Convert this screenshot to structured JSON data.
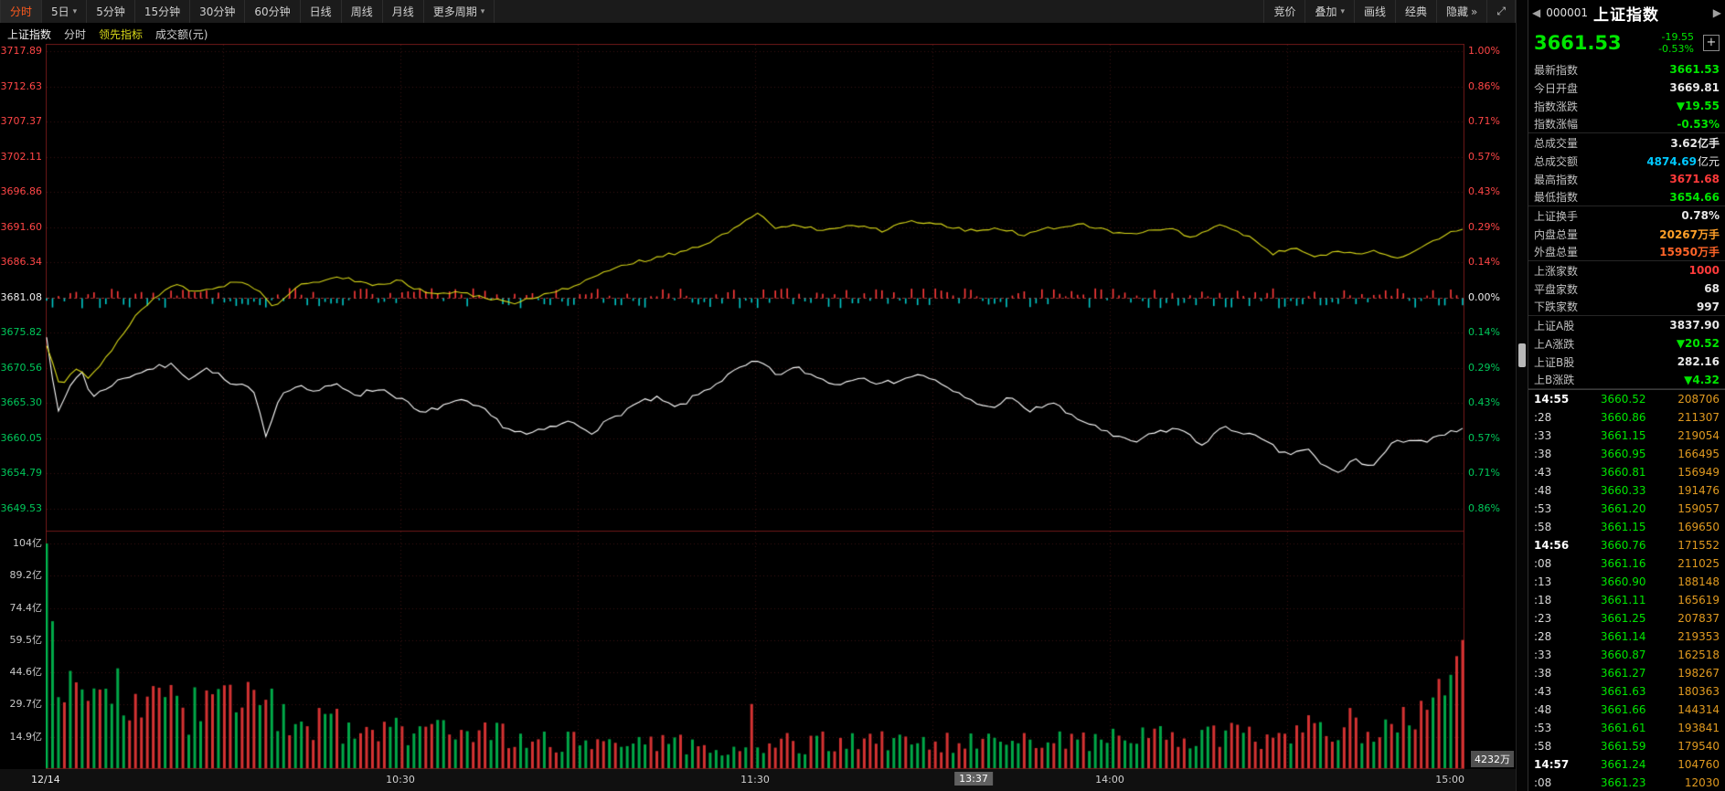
{
  "colors": {
    "up_red": "#ff3a3a",
    "down_green": "#00e600",
    "neutral_white": "#e8e8e8",
    "amount_cyan": "#00c8ff",
    "inner_orange": "#ffa028",
    "outer_orange_red": "#ff6428",
    "tick_volume_orange": "#e09a20",
    "leader_yellow": "#d8d818",
    "price_line_white": "#ffffff",
    "axis_red": "#ff4646",
    "axis_green": "#00c85a",
    "grid_dark_red": "#3a1010",
    "frame_red": "#6e1818",
    "mid_line_red": "#943030",
    "vol_up_red": "#d43232",
    "vol_down_green": "#00a848",
    "tick_up_red": "#ff3a3a",
    "tick_down_cyan": "#00c8c8",
    "active_tab_orange": "#ff5a1e"
  },
  "icons": {
    "caret_down": "▾",
    "chevron_double_right": "»",
    "fullscreen": "⤢",
    "add": "+",
    "prev": "◀",
    "next": "▶"
  },
  "toolbar": {
    "left": [
      {
        "id": "fenshi",
        "label": "分时",
        "active": true
      },
      {
        "id": "5day",
        "label": "5日",
        "caret": true
      },
      {
        "id": "5min",
        "label": "5分钟"
      },
      {
        "id": "15min",
        "label": "15分钟"
      },
      {
        "id": "30min",
        "label": "30分钟"
      },
      {
        "id": "60min",
        "label": "60分钟"
      },
      {
        "id": "daily",
        "label": "日线"
      },
      {
        "id": "weekly",
        "label": "周线"
      },
      {
        "id": "monthly",
        "label": "月线"
      },
      {
        "id": "more-periods",
        "label": "更多周期",
        "caret": true
      }
    ],
    "right": [
      {
        "id": "auction",
        "label": "竞价"
      },
      {
        "id": "overlay",
        "label": "叠加",
        "caret": true
      },
      {
        "id": "draw-line",
        "label": "画线"
      },
      {
        "id": "classic",
        "label": "经典"
      },
      {
        "id": "hide",
        "label": "隐藏",
        "suffix": true
      },
      {
        "id": "fullscreen",
        "label": "",
        "fullscreen": true
      }
    ]
  },
  "subheader": {
    "name": "上证指数",
    "period": "分时",
    "indicator": "领先指标",
    "volume_label": "成交额(元)"
  },
  "volume_badge": "4232万",
  "time_axis": {
    "date": "12/14",
    "ticks": [
      {
        "label": "10:30",
        "x": 0.25
      },
      {
        "label": "11:30",
        "x": 0.5
      },
      {
        "label": "14:00",
        "x": 0.75
      },
      {
        "label": "15:00",
        "x": 1.0
      }
    ],
    "highlight": {
      "label": "13:37",
      "x": 0.654
    }
  },
  "chart_data": {
    "type": "line",
    "title": "上证指数 分时 (领先指标 / 成交额)",
    "minutes": 240,
    "y_axis_left": {
      "p_max": 3717.89,
      "p_step": 5.2585,
      "prev_close": 3681.08,
      "labels": [
        "3717.89",
        "3712.63",
        "3707.37",
        "3702.11",
        "3696.86",
        "3691.60",
        "3686.34",
        "3681.08",
        "3675.82",
        "3670.56",
        "3665.30",
        "3660.05",
        "3654.79",
        "3649.53"
      ],
      "mid_index": 7
    },
    "y_axis_right": {
      "labels": [
        "1.00%",
        "0.86%",
        "0.71%",
        "0.57%",
        "0.43%",
        "0.29%",
        "0.14%",
        "0.00%",
        "0.14%",
        "0.29%",
        "0.43%",
        "0.57%",
        "0.71%",
        "0.86%"
      ]
    },
    "vol_axis": {
      "v_max": 104,
      "v_step": 14.857,
      "labels": [
        "104亿",
        "89.2亿",
        "74.4亿",
        "59.5亿",
        "44.6亿",
        "29.7亿",
        "14.9亿"
      ]
    },
    "series": [
      {
        "name": "price",
        "color_key": "price_line_white",
        "noise": 0.4,
        "keyframes": [
          [
            0,
            3675.5
          ],
          [
            0.008,
            3663.5
          ],
          [
            0.018,
            3668.5
          ],
          [
            0.025,
            3670.0
          ],
          [
            0.032,
            3666.0
          ],
          [
            0.045,
            3668.0
          ],
          [
            0.06,
            3669.5
          ],
          [
            0.075,
            3670.5
          ],
          [
            0.09,
            3671.0
          ],
          [
            0.1,
            3669.0
          ],
          [
            0.115,
            3670.5
          ],
          [
            0.13,
            3668.0
          ],
          [
            0.145,
            3667.5
          ],
          [
            0.155,
            3660.5
          ],
          [
            0.165,
            3666.5
          ],
          [
            0.175,
            3668.0
          ],
          [
            0.19,
            3667.0
          ],
          [
            0.205,
            3668.0
          ],
          [
            0.22,
            3666.5
          ],
          [
            0.235,
            3667.5
          ],
          [
            0.25,
            3666.0
          ],
          [
            0.265,
            3663.5
          ],
          [
            0.28,
            3665.0
          ],
          [
            0.295,
            3665.5
          ],
          [
            0.31,
            3664.0
          ],
          [
            0.325,
            3661.5
          ],
          [
            0.34,
            3660.5
          ],
          [
            0.355,
            3661.5
          ],
          [
            0.37,
            3662.5
          ],
          [
            0.385,
            3661.0
          ],
          [
            0.4,
            3663.0
          ],
          [
            0.415,
            3665.0
          ],
          [
            0.43,
            3666.0
          ],
          [
            0.445,
            3664.5
          ],
          [
            0.46,
            3666.5
          ],
          [
            0.475,
            3668.5
          ],
          [
            0.49,
            3670.5
          ],
          [
            0.503,
            3671.5
          ],
          [
            0.515,
            3669.5
          ],
          [
            0.53,
            3670.5
          ],
          [
            0.545,
            3669.0
          ],
          [
            0.56,
            3668.0
          ],
          [
            0.575,
            3669.5
          ],
          [
            0.59,
            3668.0
          ],
          [
            0.605,
            3669.0
          ],
          [
            0.62,
            3669.5
          ],
          [
            0.635,
            3667.5
          ],
          [
            0.65,
            3666.0
          ],
          [
            0.665,
            3664.5
          ],
          [
            0.68,
            3666.0
          ],
          [
            0.695,
            3664.0
          ],
          [
            0.71,
            3665.5
          ],
          [
            0.725,
            3663.0
          ],
          [
            0.74,
            3662.0
          ],
          [
            0.755,
            3660.0
          ],
          [
            0.77,
            3659.5
          ],
          [
            0.785,
            3661.0
          ],
          [
            0.8,
            3661.5
          ],
          [
            0.815,
            3659.0
          ],
          [
            0.83,
            3661.5
          ],
          [
            0.845,
            3661.0
          ],
          [
            0.86,
            3659.5
          ],
          [
            0.875,
            3657.5
          ],
          [
            0.89,
            3658.5
          ],
          [
            0.9,
            3656.0
          ],
          [
            0.912,
            3654.8
          ],
          [
            0.925,
            3657.0
          ],
          [
            0.935,
            3655.5
          ],
          [
            0.95,
            3659.0
          ],
          [
            0.962,
            3660.0
          ],
          [
            0.975,
            3659.5
          ],
          [
            0.988,
            3660.5
          ],
          [
            1,
            3661.5
          ]
        ]
      },
      {
        "name": "leader",
        "color_key": "leader_yellow",
        "noise": 0.25,
        "keyframes": [
          [
            0,
            3674.0
          ],
          [
            0.01,
            3667.5
          ],
          [
            0.02,
            3670.5
          ],
          [
            0.03,
            3669.0
          ],
          [
            0.045,
            3673.0
          ],
          [
            0.06,
            3677.5
          ],
          [
            0.075,
            3681.0
          ],
          [
            0.09,
            3683.0
          ],
          [
            0.105,
            3682.0
          ],
          [
            0.12,
            3682.5
          ],
          [
            0.135,
            3683.5
          ],
          [
            0.15,
            3682.0
          ],
          [
            0.16,
            3679.5
          ],
          [
            0.175,
            3682.5
          ],
          [
            0.19,
            3683.5
          ],
          [
            0.21,
            3684.0
          ],
          [
            0.23,
            3683.0
          ],
          [
            0.25,
            3683.5
          ],
          [
            0.27,
            3681.5
          ],
          [
            0.29,
            3682.0
          ],
          [
            0.31,
            3681.0
          ],
          [
            0.33,
            3680.0
          ],
          [
            0.35,
            3681.5
          ],
          [
            0.37,
            3682.5
          ],
          [
            0.39,
            3684.5
          ],
          [
            0.41,
            3686.0
          ],
          [
            0.43,
            3687.0
          ],
          [
            0.45,
            3688.0
          ],
          [
            0.47,
            3689.5
          ],
          [
            0.49,
            3692.0
          ],
          [
            0.502,
            3693.8
          ],
          [
            0.515,
            3691.5
          ],
          [
            0.53,
            3692.0
          ],
          [
            0.55,
            3691.0
          ],
          [
            0.57,
            3692.0
          ],
          [
            0.59,
            3691.0
          ],
          [
            0.61,
            3692.5
          ],
          [
            0.63,
            3692.0
          ],
          [
            0.65,
            3691.0
          ],
          [
            0.67,
            3691.5
          ],
          [
            0.69,
            3690.5
          ],
          [
            0.71,
            3691.5
          ],
          [
            0.73,
            3692.0
          ],
          [
            0.75,
            3691.0
          ],
          [
            0.77,
            3690.5
          ],
          [
            0.79,
            3691.5
          ],
          [
            0.81,
            3690.0
          ],
          [
            0.83,
            3692.0
          ],
          [
            0.85,
            3690.0
          ],
          [
            0.865,
            3687.5
          ],
          [
            0.88,
            3688.5
          ],
          [
            0.895,
            3687.0
          ],
          [
            0.91,
            3688.0
          ],
          [
            0.925,
            3687.5
          ],
          [
            0.94,
            3688.0
          ],
          [
            0.955,
            3687.0
          ],
          [
            0.97,
            3688.5
          ],
          [
            0.985,
            3690.0
          ],
          [
            1,
            3691.5
          ]
        ]
      }
    ],
    "volume": {
      "keyframes": [
        [
          0,
          104
        ],
        [
          0.004,
          66
        ],
        [
          0.01,
          58
        ],
        [
          0.02,
          46
        ],
        [
          0.03,
          40
        ],
        [
          0.045,
          34
        ],
        [
          0.06,
          30
        ],
        [
          0.075,
          28
        ],
        [
          0.09,
          32
        ],
        [
          0.105,
          26
        ],
        [
          0.12,
          30
        ],
        [
          0.135,
          33
        ],
        [
          0.15,
          28
        ],
        [
          0.165,
          24
        ],
        [
          0.18,
          22
        ],
        [
          0.2,
          21
        ],
        [
          0.22,
          19
        ],
        [
          0.25,
          18
        ],
        [
          0.28,
          16
        ],
        [
          0.31,
          15
        ],
        [
          0.34,
          14
        ],
        [
          0.37,
          13
        ],
        [
          0.4,
          12
        ],
        [
          0.43,
          11
        ],
        [
          0.46,
          11
        ],
        [
          0.49,
          10
        ],
        [
          0.51,
          13
        ],
        [
          0.54,
          12
        ],
        [
          0.57,
          12
        ],
        [
          0.6,
          13
        ],
        [
          0.63,
          12
        ],
        [
          0.66,
          12
        ],
        [
          0.69,
          13
        ],
        [
          0.72,
          13
        ],
        [
          0.75,
          14
        ],
        [
          0.78,
          14
        ],
        [
          0.81,
          15
        ],
        [
          0.84,
          16
        ],
        [
          0.87,
          17
        ],
        [
          0.9,
          18
        ],
        [
          0.92,
          20
        ],
        [
          0.94,
          22
        ],
        [
          0.96,
          25
        ],
        [
          0.975,
          28
        ],
        [
          0.985,
          32
        ],
        [
          0.995,
          40
        ],
        [
          1,
          59.5
        ]
      ],
      "spikes": [
        {
          "i": 0,
          "v": 104,
          "color": "green"
        },
        {
          "i": 119,
          "v": 30,
          "color": "red"
        },
        {
          "i": 239,
          "v": 59.5,
          "color": "red"
        }
      ]
    }
  },
  "panel": {
    "header": {
      "code": "000001",
      "name": "上证指数"
    },
    "quote": {
      "price": "3661.53",
      "change": "-19.55",
      "change_pct": "-0.53%"
    },
    "rows": [
      {
        "id": "latest",
        "label": "最新指数",
        "value": "3661.53",
        "color": "green"
      },
      {
        "id": "open",
        "label": "今日开盘",
        "value": "3669.81",
        "color": "white"
      },
      {
        "id": "change",
        "label": "指数涨跌",
        "value": "▼19.55",
        "color": "green"
      },
      {
        "id": "change-pct",
        "label": "指数涨幅",
        "value": "-0.53%",
        "color": "green",
        "divider": true
      },
      {
        "id": "total-volume",
        "label": "总成交量",
        "value": "3.62亿手",
        "color": "white"
      },
      {
        "id": "total-amount",
        "label": "总成交额",
        "value": "4874.69",
        "unit": "亿元",
        "color": "cyan"
      },
      {
        "id": "high",
        "label": "最高指数",
        "value": "3671.68",
        "color": "red"
      },
      {
        "id": "low",
        "label": "最低指数",
        "value": "3654.66",
        "color": "green",
        "divider": true
      },
      {
        "id": "turnover",
        "label": "上证换手",
        "value": "0.78%",
        "color": "white"
      },
      {
        "id": "inner-volume",
        "label": "内盘总量",
        "value": "20267万手",
        "color": "orange"
      },
      {
        "id": "outer-volume",
        "label": "外盘总量",
        "value": "15950万手",
        "color": "redorange",
        "divider": true
      },
      {
        "id": "advancers",
        "label": "上涨家数",
        "value": "1000",
        "color": "red"
      },
      {
        "id": "unchanged",
        "label": "平盘家数",
        "value": "68",
        "color": "white"
      },
      {
        "id": "decliners",
        "label": "下跌家数",
        "value": "997",
        "color": "white",
        "divider": true
      },
      {
        "id": "sh-a",
        "label": "上证A股",
        "value": "3837.90",
        "color": "white"
      },
      {
        "id": "sh-a-change",
        "label": "上A涨跌",
        "value": "▼20.52",
        "color": "green"
      },
      {
        "id": "sh-b",
        "label": "上证B股",
        "value": "282.16",
        "color": "white"
      },
      {
        "id": "sh-b-change",
        "label": "上B涨跌",
        "value": "▼4.32",
        "color": "green",
        "divider": true
      }
    ],
    "ticks": [
      {
        "t": "14:55",
        "p": "3660.52",
        "v": "208706"
      },
      {
        "t": ":28",
        "p": "3660.86",
        "v": "211307"
      },
      {
        "t": ":33",
        "p": "3661.15",
        "v": "219054"
      },
      {
        "t": ":38",
        "p": "3660.95",
        "v": "166495"
      },
      {
        "t": ":43",
        "p": "3660.81",
        "v": "156949"
      },
      {
        "t": ":48",
        "p": "3660.33",
        "v": "191476"
      },
      {
        "t": ":53",
        "p": "3661.20",
        "v": "159057"
      },
      {
        "t": ":58",
        "p": "3661.15",
        "v": "169650"
      },
      {
        "t": "14:56",
        "p": "3660.76",
        "v": "171552"
      },
      {
        "t": ":08",
        "p": "3661.16",
        "v": "211025"
      },
      {
        "t": ":13",
        "p": "3660.90",
        "v": "188148"
      },
      {
        "t": ":18",
        "p": "3661.11",
        "v": "165619"
      },
      {
        "t": ":23",
        "p": "3661.25",
        "v": "207837"
      },
      {
        "t": ":28",
        "p": "3661.14",
        "v": "219353"
      },
      {
        "t": ":33",
        "p": "3660.87",
        "v": "162518"
      },
      {
        "t": ":38",
        "p": "3661.27",
        "v": "198267"
      },
      {
        "t": ":43",
        "p": "3661.63",
        "v": "180363"
      },
      {
        "t": ":48",
        "p": "3661.66",
        "v": "144314"
      },
      {
        "t": ":53",
        "p": "3661.61",
        "v": "193841"
      },
      {
        "t": ":58",
        "p": "3661.59",
        "v": "179540"
      },
      {
        "t": "14:57",
        "p": "3661.24",
        "v": "104760"
      },
      {
        "t": ":08",
        "p": "3661.23",
        "v": "12030"
      }
    ]
  }
}
